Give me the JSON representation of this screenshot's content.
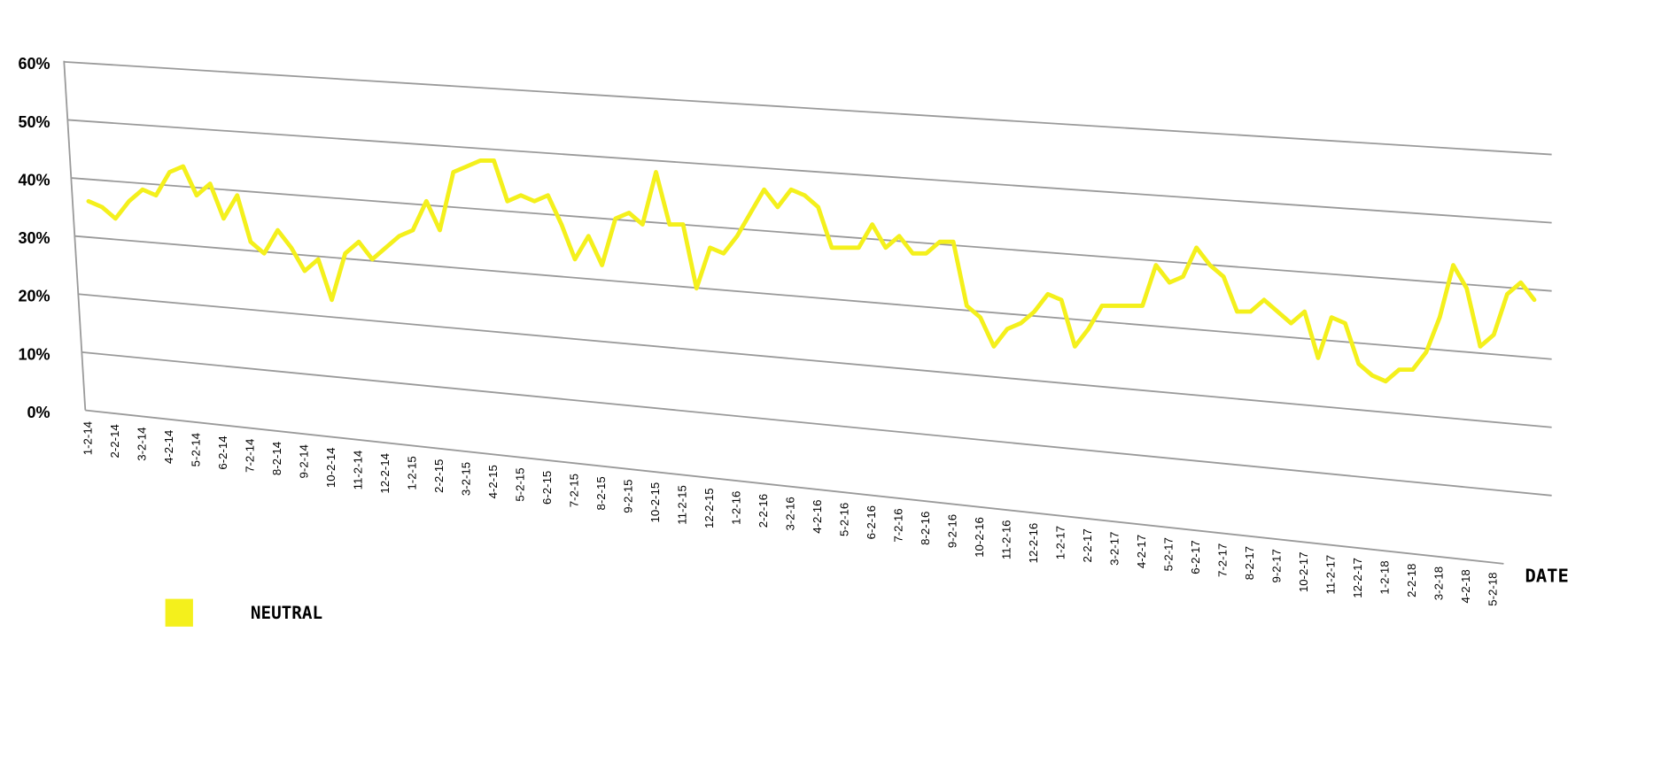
{
  "chart_data": {
    "type": "line",
    "x_label": "DATE",
    "categories": [
      "1-2-14",
      null,
      "2-2-14",
      null,
      "3-2-14",
      null,
      "4-2-14",
      null,
      "5-2-14",
      null,
      "6-2-14",
      null,
      "7-2-14",
      null,
      "8-2-14",
      null,
      "9-2-14",
      null,
      "10-2-14",
      null,
      "11-2-14",
      null,
      "12-2-14",
      null,
      "1-2-15",
      null,
      "2-2-15",
      null,
      "3-2-15",
      null,
      "4-2-15",
      null,
      "5-2-15",
      null,
      "6-2-15",
      null,
      "7-2-15",
      null,
      "8-2-15",
      null,
      "9-2-15",
      null,
      "10-2-15",
      null,
      "11-2-15",
      null,
      "12-2-15",
      null,
      "1-2-16",
      null,
      "2-2-16",
      null,
      "3-2-16",
      null,
      "4-2-16",
      null,
      "5-2-16",
      null,
      "6-2-16",
      null,
      "7-2-16",
      null,
      "8-2-16",
      null,
      "9-2-16",
      null,
      "10-2-16",
      null,
      "11-2-16",
      null,
      "12-2-16",
      null,
      "1-2-17",
      null,
      "2-2-17",
      null,
      "3-2-17",
      null,
      "4-2-17",
      null,
      "5-2-17",
      null,
      "6-2-17",
      null,
      "7-2-17",
      null,
      "8-2-17",
      null,
      "9-2-17",
      null,
      "10-2-17",
      null,
      "11-2-17",
      null,
      "12-2-17",
      null,
      "1-2-18",
      null,
      "2-2-18",
      null,
      "3-2-18",
      null,
      "4-2-18",
      null,
      "5-2-18",
      null,
      null,
      null
    ],
    "series": [
      {
        "name": "NEUTRAL",
        "color": "#f4f01c",
        "values": [
          36,
          35,
          33,
          36,
          38,
          37,
          41,
          42,
          37,
          39,
          33,
          37,
          29,
          27,
          31,
          28,
          24,
          26,
          19,
          27,
          29,
          26,
          28,
          30,
          31,
          36,
          31,
          41,
          42,
          43,
          43,
          36,
          37,
          36,
          37,
          32,
          26,
          30,
          25,
          33,
          34,
          32,
          41,
          32,
          32,
          21,
          28,
          27,
          30,
          34,
          38,
          35,
          38,
          37,
          35,
          28,
          28,
          28,
          32,
          28,
          30,
          27,
          27,
          29,
          29,
          18,
          16,
          11,
          14,
          15,
          17,
          20,
          19,
          11,
          14,
          18,
          18,
          18,
          18,
          25,
          22,
          23,
          28,
          25,
          23,
          17,
          17,
          19,
          17,
          15,
          17,
          9,
          16,
          15,
          8,
          6,
          5,
          7,
          7,
          10,
          16,
          25,
          21,
          11,
          13,
          20,
          22,
          19
        ]
      }
    ],
    "ylim": [
      0,
      60
    ],
    "yticks": [
      {
        "value": 0,
        "label": "0%"
      },
      {
        "value": 10,
        "label": "10%"
      },
      {
        "value": 20,
        "label": "20%"
      },
      {
        "value": 30,
        "label": "30%"
      },
      {
        "value": 40,
        "label": "40%"
      },
      {
        "value": 50,
        "label": "50%"
      },
      {
        "value": 60,
        "label": "60%"
      }
    ],
    "grid": true
  }
}
